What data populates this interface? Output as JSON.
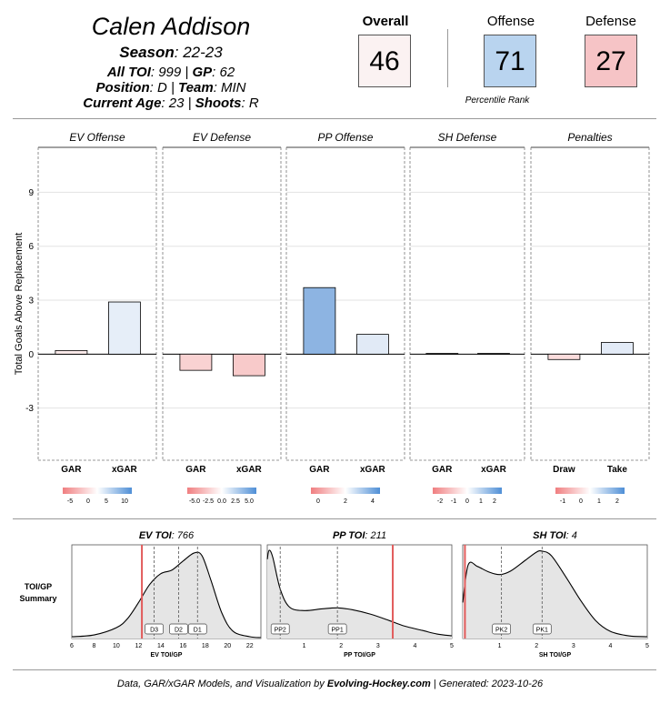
{
  "header": {
    "player_name": "Calen Addison",
    "season_label": "Season",
    "season_value": ": 22-23",
    "toi_label": "All TOI",
    "toi_value": ": 999 | ",
    "gp_label": "GP",
    "gp_value": ": 62",
    "position_label": "Position",
    "position_value": ": D | ",
    "team_label": "Team",
    "team_value": ": MIN",
    "age_label": "Current Age",
    "age_value": ": 23 | ",
    "shoots_label": "Shoots",
    "shoots_value": ": R"
  },
  "scores": {
    "overall": {
      "label": "Overall",
      "value": "46",
      "color": "#fbf2f2"
    },
    "offense": {
      "label": "Offense",
      "value": "71",
      "color": "#b9d4ef"
    },
    "defense": {
      "label": "Defense",
      "value": "27",
      "color": "#f6c4c6"
    },
    "percentile_label": "Percentile Rank"
  },
  "chart_data": [
    {
      "type": "bar",
      "ylabel": "Total Goals Above Replacement",
      "yticks": [
        -3,
        0,
        3,
        6,
        9
      ],
      "ylim": [
        -5.9,
        11.5
      ],
      "grid": true,
      "panels": [
        {
          "title": "EV Offense",
          "categories": [
            "GAR",
            "xGAR"
          ],
          "values": [
            0.2,
            2.9
          ],
          "colors": [
            "#fcebeb",
            "#e6eef8"
          ],
          "legend_ticks": [
            "-5",
            "0",
            "5",
            "10"
          ]
        },
        {
          "title": "EV Defense",
          "categories": [
            "GAR",
            "xGAR"
          ],
          "values": [
            -0.9,
            -1.2
          ],
          "colors": [
            "#f9d2d2",
            "#f8caca"
          ],
          "legend_ticks": [
            "-5.0",
            "-2.5",
            "0.0",
            "2.5",
            "5.0"
          ]
        },
        {
          "title": "PP Offense",
          "categories": [
            "GAR",
            "xGAR"
          ],
          "values": [
            3.7,
            1.1
          ],
          "colors": [
            "#8db4e2",
            "#e1eaf6"
          ],
          "legend_ticks": [
            "0",
            "2",
            "4"
          ]
        },
        {
          "title": "SH Defense",
          "categories": [
            "GAR",
            "xGAR"
          ],
          "values": [
            0.04,
            0.04
          ],
          "colors": [
            "#f2f2f2",
            "#f2f2f2"
          ],
          "legend_ticks": [
            "-2",
            "-1",
            "0",
            "1",
            "2"
          ]
        },
        {
          "title": "Penalties",
          "categories": [
            "Draw",
            "Take"
          ],
          "values": [
            -0.3,
            0.65
          ],
          "colors": [
            "#fbdcdc",
            "#e3ebf7"
          ],
          "legend_ticks": [
            "-1",
            "0",
            "1",
            "2"
          ]
        }
      ]
    },
    {
      "type": "area",
      "summary_label_1": "TOI/GP",
      "summary_label_2": "Summary",
      "panels": [
        {
          "title_bold": "EV TOI",
          "title_rest": ": 766",
          "xlabel": "EV TOI/GP",
          "xlim": [
            6,
            23
          ],
          "xticks": [
            6,
            8,
            10,
            12,
            14,
            16,
            18,
            20,
            22
          ],
          "density": [
            [
              6,
              0.02
            ],
            [
              8,
              0.04
            ],
            [
              10,
              0.12
            ],
            [
              11,
              0.22
            ],
            [
              12,
              0.4
            ],
            [
              13,
              0.6
            ],
            [
              14,
              0.72
            ],
            [
              15,
              0.76
            ],
            [
              16,
              0.86
            ],
            [
              17,
              0.95
            ],
            [
              17.7,
              0.92
            ],
            [
              18.5,
              0.65
            ],
            [
              19.5,
              0.28
            ],
            [
              20.5,
              0.08
            ],
            [
              22,
              0.02
            ],
            [
              23,
              0.01
            ]
          ],
          "player_value": 12.3,
          "markers": [
            {
              "label": "D3",
              "x": 13.4
            },
            {
              "label": "D2",
              "x": 15.6
            },
            {
              "label": "D1",
              "x": 17.3
            }
          ]
        },
        {
          "title_bold": "PP TOI",
          "title_rest": ": 211",
          "xlabel": "PP TOI/GP",
          "xlim": [
            0,
            5
          ],
          "xticks": [
            1,
            2,
            3,
            4,
            5
          ],
          "density": [
            [
              0,
              0.88
            ],
            [
              0.05,
              0.98
            ],
            [
              0.15,
              0.9
            ],
            [
              0.35,
              0.55
            ],
            [
              0.6,
              0.35
            ],
            [
              1,
              0.31
            ],
            [
              1.5,
              0.33
            ],
            [
              1.9,
              0.34
            ],
            [
              2.3,
              0.32
            ],
            [
              2.8,
              0.27
            ],
            [
              3.3,
              0.2
            ],
            [
              3.7,
              0.14
            ],
            [
              4.2,
              0.09
            ],
            [
              4.6,
              0.05
            ],
            [
              5,
              0.03
            ]
          ],
          "player_value": 3.4,
          "markers": [
            {
              "label": "PP2",
              "x": 0.35
            },
            {
              "label": "PP1",
              "x": 1.9
            }
          ]
        },
        {
          "title_bold": "SH TOI",
          "title_rest": ": 4",
          "xlabel": "SH TOI/GP",
          "xlim": [
            0,
            5
          ],
          "xticks": [
            1,
            2,
            3,
            4,
            5
          ],
          "density": [
            [
              0,
              0.4
            ],
            [
              0.15,
              0.82
            ],
            [
              0.4,
              0.8
            ],
            [
              0.7,
              0.74
            ],
            [
              1,
              0.71
            ],
            [
              1.3,
              0.75
            ],
            [
              1.7,
              0.87
            ],
            [
              2,
              0.96
            ],
            [
              2.15,
              0.97
            ],
            [
              2.4,
              0.92
            ],
            [
              2.8,
              0.68
            ],
            [
              3.2,
              0.42
            ],
            [
              3.6,
              0.2
            ],
            [
              4,
              0.08
            ],
            [
              4.5,
              0.03
            ],
            [
              5,
              0.02
            ]
          ],
          "player_value": 0.06,
          "markers": [
            {
              "label": "PK2",
              "x": 1.05
            },
            {
              "label": "PK1",
              "x": 2.15
            }
          ]
        }
      ]
    }
  ],
  "footer": {
    "prefix": "Data, GAR/xGAR Models, and Visualization by ",
    "site": "Evolving-Hockey.com",
    "suffix": " | Generated:  2023-10-26"
  }
}
